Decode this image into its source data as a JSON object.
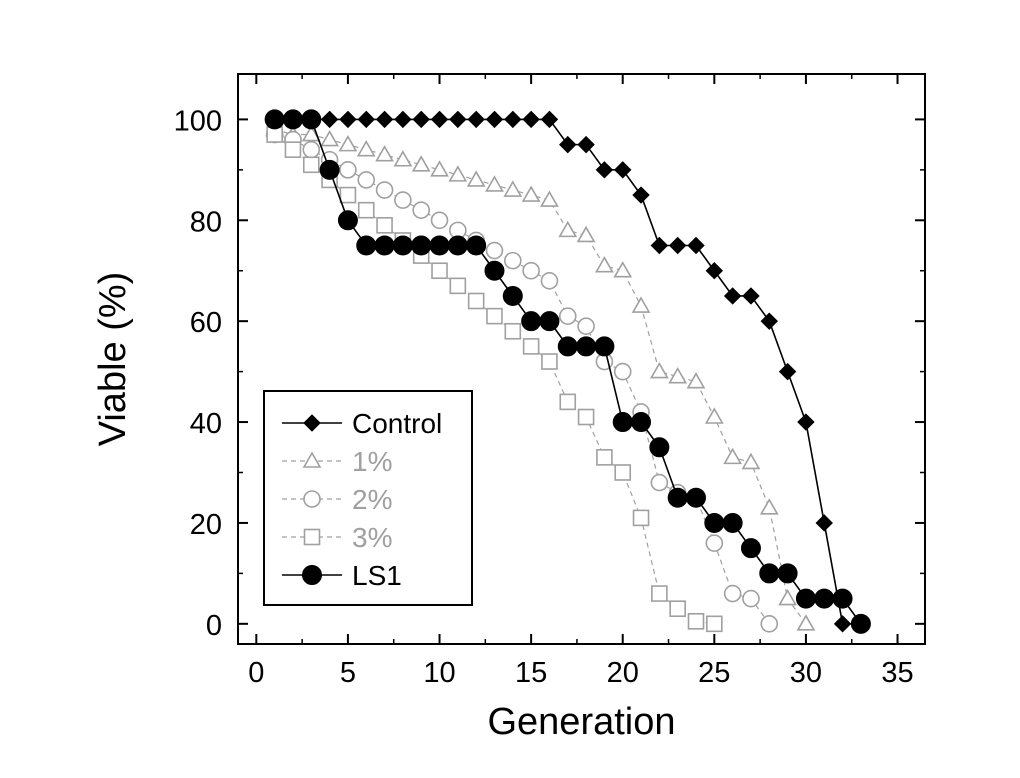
{
  "chart_data": {
    "type": "line",
    "xlabel": "Generation",
    "ylabel": "Viable (%)",
    "xlim": [
      -1,
      36.5
    ],
    "ylim": [
      -4,
      109
    ],
    "xticks": [
      0,
      5,
      10,
      15,
      20,
      25,
      30,
      35
    ],
    "yticks": [
      0,
      20,
      40,
      60,
      80,
      100
    ],
    "grid": false,
    "legend_position": "lower-left",
    "series": [
      {
        "name": "Control",
        "color": "#000000",
        "marker": "diamond",
        "line_style": "solid",
        "x": [
          1,
          2,
          3,
          4,
          5,
          6,
          7,
          8,
          9,
          10,
          11,
          12,
          13,
          14,
          15,
          16,
          17,
          18,
          19,
          20,
          21,
          22,
          23,
          24,
          25,
          26,
          27,
          28,
          29,
          30,
          31,
          32,
          33
        ],
        "y": [
          100,
          100,
          100,
          100,
          100,
          100,
          100,
          100,
          100,
          100,
          100,
          100,
          100,
          100,
          100,
          100,
          95,
          95,
          90,
          90,
          85,
          75,
          75,
          75,
          70,
          65,
          65,
          60,
          50,
          40,
          20,
          0,
          0
        ]
      },
      {
        "name": "1%",
        "color": "#a0a0a0",
        "marker": "triangle",
        "line_style": "dashed",
        "x": [
          1,
          2,
          3,
          4,
          5,
          6,
          7,
          8,
          9,
          10,
          11,
          12,
          13,
          14,
          15,
          16,
          17,
          18,
          19,
          20,
          21,
          22,
          23,
          24,
          25,
          26,
          27,
          28,
          29,
          30
        ],
        "y": [
          98,
          97,
          97,
          96,
          95,
          94,
          93,
          92,
          91,
          90,
          89,
          88,
          87,
          86,
          85,
          84,
          78,
          77,
          71,
          70,
          63,
          50,
          49,
          48,
          41,
          33,
          32,
          23,
          5,
          0
        ]
      },
      {
        "name": "2%",
        "color": "#a0a0a0",
        "marker": "circle-open",
        "line_style": "dashed",
        "x": [
          1,
          2,
          3,
          4,
          5,
          6,
          7,
          8,
          9,
          10,
          11,
          12,
          13,
          14,
          15,
          16,
          17,
          18,
          19,
          20,
          21,
          22,
          23,
          24,
          25,
          26,
          27,
          28
        ],
        "y": [
          97,
          96,
          94,
          92,
          90,
          88,
          86,
          84,
          82,
          80,
          78,
          76,
          74,
          72,
          70,
          68,
          61,
          59,
          52,
          50,
          42,
          28,
          26,
          25,
          16,
          6,
          5,
          0
        ]
      },
      {
        "name": "3%",
        "color": "#a0a0a0",
        "marker": "square",
        "line_style": "dashed",
        "x": [
          1,
          2,
          3,
          4,
          5,
          6,
          7,
          8,
          9,
          10,
          11,
          12,
          13,
          14,
          15,
          16,
          17,
          18,
          19,
          20,
          21,
          22,
          23,
          24,
          25
        ],
        "y": [
          97,
          94,
          91,
          88,
          85,
          82,
          79,
          76,
          73,
          70,
          67,
          64,
          61,
          58,
          55,
          52,
          44,
          41,
          33,
          30,
          21,
          6,
          3,
          0.5,
          0
        ]
      },
      {
        "name": "LS1",
        "color": "#000000",
        "marker": "circle-filled",
        "line_style": "solid",
        "x": [
          1,
          2,
          3,
          4,
          5,
          6,
          7,
          8,
          9,
          10,
          11,
          12,
          13,
          14,
          15,
          16,
          17,
          18,
          19,
          20,
          21,
          22,
          23,
          24,
          25,
          26,
          27,
          28,
          29,
          30,
          31,
          32,
          33
        ],
        "y": [
          100,
          100,
          100,
          90,
          80,
          75,
          75,
          75,
          75,
          75,
          75,
          75,
          70,
          65,
          60,
          60,
          55,
          55,
          55,
          40,
          40,
          35,
          25,
          25,
          20,
          20,
          15,
          10,
          10,
          5,
          5,
          5,
          0
        ]
      }
    ]
  }
}
